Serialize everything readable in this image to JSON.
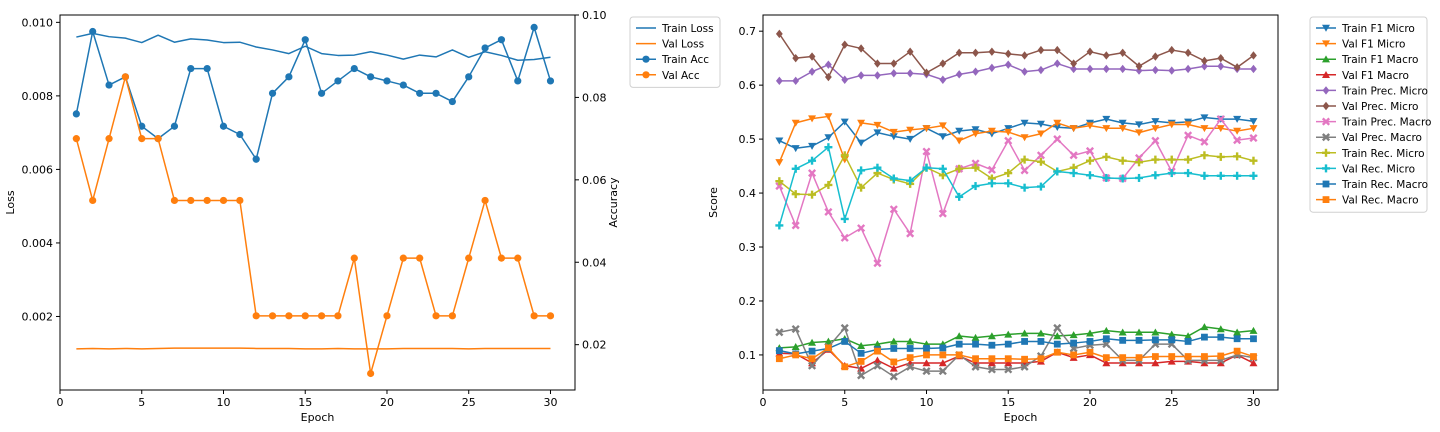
{
  "chart_data": [
    {
      "type": "line",
      "xlabel": "Epoch",
      "ylabel": "Loss",
      "y2label": "Accuracy",
      "xlim": [
        0,
        31.5
      ],
      "ylim": [
        0.0,
        0.0102
      ],
      "y2lim": [
        0.009,
        0.1
      ],
      "xticks": [
        0,
        5,
        10,
        15,
        20,
        25,
        30
      ],
      "yticks": [
        0.002,
        0.004,
        0.006,
        0.008,
        0.01
      ],
      "ytick_labels": [
        "0.002",
        "0.004",
        "0.006",
        "0.008",
        "0.010"
      ],
      "y2ticks": [
        0.02,
        0.04,
        0.06,
        0.08,
        0.1
      ],
      "y2tick_labels": [
        "0.02",
        "0.04",
        "0.06",
        "0.08",
        "0.10"
      ],
      "legend_position": "outside-right",
      "x": [
        1,
        2,
        3,
        4,
        5,
        6,
        7,
        8,
        9,
        10,
        11,
        12,
        13,
        14,
        15,
        16,
        17,
        18,
        19,
        20,
        21,
        22,
        23,
        24,
        25,
        26,
        27,
        28,
        29,
        30
      ],
      "series": [
        {
          "name": "Train Loss",
          "axis": "left",
          "color": "#1f77b4",
          "marker": "none",
          "values": [
            0.0096,
            0.0097,
            0.00961,
            0.00957,
            0.00945,
            0.00965,
            0.00946,
            0.00955,
            0.00952,
            0.00945,
            0.00946,
            0.00933,
            0.00925,
            0.00915,
            0.00935,
            0.00915,
            0.0091,
            0.00911,
            0.0092,
            0.00911,
            0.009,
            0.00911,
            0.00906,
            0.00925,
            0.00905,
            0.0092,
            0.0091,
            0.00897,
            0.00899,
            0.00905
          ]
        },
        {
          "name": "Val Loss",
          "axis": "left",
          "color": "#ff7f0e",
          "marker": "none",
          "values": [
            0.00112,
            0.00113,
            0.00112,
            0.00113,
            0.00112,
            0.00113,
            0.00114,
            0.00114,
            0.00114,
            0.00114,
            0.00114,
            0.00113,
            0.00113,
            0.00113,
            0.00112,
            0.00112,
            0.00113,
            0.00112,
            0.00112,
            0.00112,
            0.00113,
            0.00113,
            0.00113,
            0.00113,
            0.00112,
            0.00113,
            0.00113,
            0.00113,
            0.00113,
            0.00113
          ]
        },
        {
          "name": "Train Acc",
          "axis": "right",
          "color": "#1f77b4",
          "marker": "circle",
          "values": [
            0.076,
            0.096,
            0.083,
            0.085,
            0.073,
            0.07,
            0.073,
            0.087,
            0.087,
            0.073,
            0.071,
            0.065,
            0.081,
            0.085,
            0.094,
            0.081,
            0.084,
            0.087,
            0.085,
            0.084,
            0.083,
            0.081,
            0.081,
            0.079,
            0.085,
            0.092,
            0.094,
            0.084,
            0.097,
            0.084
          ]
        },
        {
          "name": "Val Acc",
          "axis": "right",
          "color": "#ff7f0e",
          "marker": "circle",
          "values": [
            0.07,
            0.055,
            0.07,
            0.085,
            0.07,
            0.07,
            0.055,
            0.055,
            0.055,
            0.055,
            0.055,
            0.027,
            0.027,
            0.027,
            0.027,
            0.027,
            0.027,
            0.041,
            0.013,
            0.027,
            0.041,
            0.041,
            0.027,
            0.027,
            0.041,
            0.055,
            0.041,
            0.041,
            0.027,
            0.027
          ]
        }
      ]
    },
    {
      "type": "line",
      "xlabel": "Epoch",
      "ylabel": "Score",
      "xlim": [
        0,
        31.5
      ],
      "ylim": [
        0.035,
        0.73
      ],
      "xticks": [
        0,
        5,
        10,
        15,
        20,
        25,
        30
      ],
      "yticks": [
        0.1,
        0.2,
        0.3,
        0.4,
        0.5,
        0.6,
        0.7
      ],
      "ytick_labels": [
        "0.1",
        "0.2",
        "0.3",
        "0.4",
        "0.5",
        "0.6",
        "0.7"
      ],
      "legend_position": "outside-right",
      "x": [
        1,
        2,
        3,
        4,
        5,
        6,
        7,
        8,
        9,
        10,
        11,
        12,
        13,
        14,
        15,
        16,
        17,
        18,
        19,
        20,
        21,
        22,
        23,
        24,
        25,
        26,
        27,
        28,
        29,
        30
      ],
      "series": [
        {
          "name": "Train F1 Micro",
          "color": "#1f77b4",
          "marker": "tri-down",
          "values": [
            0.497,
            0.483,
            0.487,
            0.503,
            0.532,
            0.493,
            0.512,
            0.505,
            0.5,
            0.52,
            0.505,
            0.515,
            0.518,
            0.51,
            0.52,
            0.53,
            0.528,
            0.522,
            0.52,
            0.53,
            0.537,
            0.53,
            0.527,
            0.533,
            0.53,
            0.532,
            0.54,
            0.537,
            0.537,
            0.533
          ]
        },
        {
          "name": "Val F1 Micro",
          "color": "#ff7f0e",
          "marker": "tri-down",
          "values": [
            0.457,
            0.53,
            0.538,
            0.542,
            0.462,
            0.53,
            0.526,
            0.513,
            0.517,
            0.52,
            0.525,
            0.497,
            0.51,
            0.515,
            0.513,
            0.503,
            0.51,
            0.53,
            0.52,
            0.525,
            0.52,
            0.52,
            0.512,
            0.52,
            0.527,
            0.527,
            0.52,
            0.52,
            0.515,
            0.52
          ]
        },
        {
          "name": "Train F1 Macro",
          "color": "#2ca02c",
          "marker": "tri-up",
          "values": [
            0.113,
            0.115,
            0.123,
            0.125,
            0.13,
            0.117,
            0.12,
            0.125,
            0.125,
            0.12,
            0.12,
            0.135,
            0.132,
            0.135,
            0.138,
            0.14,
            0.14,
            0.135,
            0.137,
            0.14,
            0.145,
            0.142,
            0.142,
            0.142,
            0.138,
            0.135,
            0.152,
            0.148,
            0.142,
            0.145
          ]
        },
        {
          "name": "Val F1 Macro",
          "color": "#d62728",
          "marker": "tri-up",
          "values": [
            0.103,
            0.102,
            0.085,
            0.11,
            0.08,
            0.075,
            0.09,
            0.075,
            0.085,
            0.085,
            0.085,
            0.098,
            0.085,
            0.085,
            0.085,
            0.085,
            0.088,
            0.105,
            0.095,
            0.1,
            0.085,
            0.085,
            0.085,
            0.085,
            0.088,
            0.088,
            0.085,
            0.085,
            0.1,
            0.085
          ]
        },
        {
          "name": "Train Prec. Micro",
          "color": "#9467bd",
          "marker": "diamond",
          "values": [
            0.608,
            0.608,
            0.625,
            0.638,
            0.61,
            0.618,
            0.618,
            0.622,
            0.622,
            0.62,
            0.61,
            0.62,
            0.625,
            0.632,
            0.638,
            0.625,
            0.628,
            0.64,
            0.63,
            0.63,
            0.63,
            0.63,
            0.627,
            0.628,
            0.627,
            0.63,
            0.635,
            0.635,
            0.63,
            0.63
          ]
        },
        {
          "name": "Val Prec. Micro",
          "color": "#8c564b",
          "marker": "diamond",
          "values": [
            0.695,
            0.65,
            0.653,
            0.615,
            0.675,
            0.668,
            0.64,
            0.64,
            0.662,
            0.623,
            0.64,
            0.66,
            0.66,
            0.662,
            0.658,
            0.655,
            0.665,
            0.665,
            0.64,
            0.662,
            0.655,
            0.66,
            0.635,
            0.653,
            0.665,
            0.66,
            0.645,
            0.65,
            0.633,
            0.655
          ]
        },
        {
          "name": "Train Prec. Macro",
          "color": "#e377c2",
          "marker": "x",
          "values": [
            0.413,
            0.34,
            0.437,
            0.365,
            0.317,
            0.335,
            0.27,
            0.37,
            0.325,
            0.477,
            0.362,
            0.445,
            0.455,
            0.443,
            0.497,
            0.442,
            0.47,
            0.5,
            0.47,
            0.478,
            0.428,
            0.427,
            0.465,
            0.497,
            0.44,
            0.507,
            0.495,
            0.537,
            0.498,
            0.502
          ]
        },
        {
          "name": "Val Prec. Macro",
          "color": "#7f7f7f",
          "marker": "x",
          "values": [
            0.142,
            0.148,
            0.08,
            0.115,
            0.15,
            0.062,
            0.08,
            0.06,
            0.078,
            0.07,
            0.07,
            0.1,
            0.078,
            0.073,
            0.073,
            0.078,
            0.098,
            0.15,
            0.112,
            0.118,
            0.12,
            0.09,
            0.09,
            0.12,
            0.12,
            0.09,
            0.09,
            0.09,
            0.1,
            0.095
          ]
        },
        {
          "name": "Train Rec. Micro",
          "color": "#bcbd22",
          "marker": "plus",
          "values": [
            0.422,
            0.398,
            0.397,
            0.415,
            0.47,
            0.41,
            0.437,
            0.425,
            0.417,
            0.447,
            0.433,
            0.445,
            0.447,
            0.427,
            0.437,
            0.462,
            0.458,
            0.44,
            0.447,
            0.46,
            0.467,
            0.46,
            0.457,
            0.462,
            0.462,
            0.462,
            0.47,
            0.467,
            0.468,
            0.46
          ]
        },
        {
          "name": "Val Rec. Micro",
          "color": "#17becf",
          "marker": "plus",
          "values": [
            0.34,
            0.445,
            0.46,
            0.485,
            0.352,
            0.442,
            0.447,
            0.427,
            0.423,
            0.447,
            0.445,
            0.393,
            0.413,
            0.418,
            0.418,
            0.41,
            0.412,
            0.44,
            0.437,
            0.433,
            0.428,
            0.427,
            0.428,
            0.433,
            0.437,
            0.437,
            0.432,
            0.432,
            0.432,
            0.432
          ]
        },
        {
          "name": "Train Rec. Macro",
          "color": "#1f77b4",
          "marker": "square",
          "values": [
            0.108,
            0.102,
            0.107,
            0.112,
            0.125,
            0.103,
            0.11,
            0.112,
            0.112,
            0.112,
            0.113,
            0.12,
            0.12,
            0.118,
            0.12,
            0.125,
            0.125,
            0.12,
            0.122,
            0.125,
            0.13,
            0.127,
            0.127,
            0.128,
            0.128,
            0.125,
            0.133,
            0.133,
            0.13,
            0.13
          ]
        },
        {
          "name": "Val Rec. Macro",
          "color": "#ff7f0e",
          "marker": "square",
          "values": [
            0.093,
            0.1,
            0.093,
            0.113,
            0.078,
            0.088,
            0.107,
            0.087,
            0.095,
            0.1,
            0.1,
            0.1,
            0.093,
            0.093,
            0.093,
            0.092,
            0.093,
            0.105,
            0.1,
            0.105,
            0.095,
            0.095,
            0.095,
            0.097,
            0.097,
            0.097,
            0.097,
            0.098,
            0.107,
            0.097
          ]
        }
      ]
    }
  ]
}
